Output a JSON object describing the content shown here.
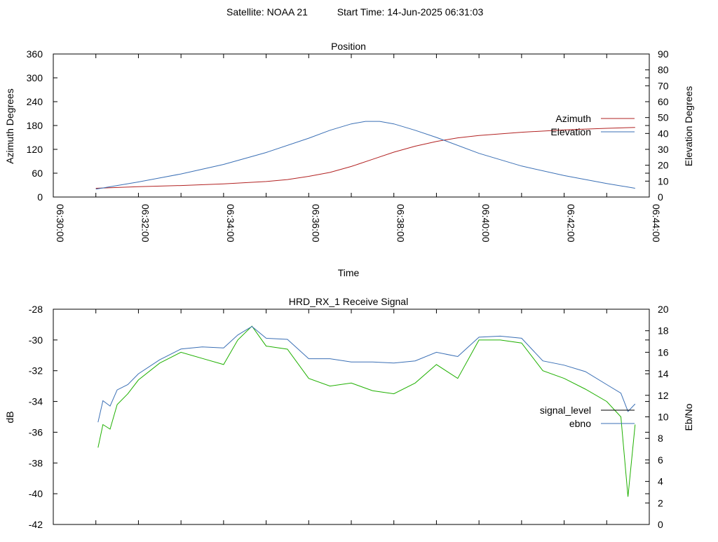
{
  "header": {
    "satellite": "Satellite: NOAA 21",
    "start_time": "Start Time: 14-Jun-2025 06:31:03"
  },
  "chart_data": [
    {
      "id": "position",
      "type": "line",
      "title": "Position",
      "xlabel": "Time",
      "ylabel_left": "Azimuth Degrees",
      "ylabel_right": "Elevation Degrees",
      "xlim": [
        "06:30:00",
        "06:44:00"
      ],
      "ylim_left": [
        0,
        360
      ],
      "ylim_right": [
        0,
        90
      ],
      "x_ticks": [
        "06:30:00",
        "06:32:00",
        "06:34:00",
        "06:36:00",
        "06:38:00",
        "06:40:00",
        "06:42:00",
        "06:44:00"
      ],
      "y_ticks_left": [
        "0",
        "60",
        "120",
        "180",
        "240",
        "300",
        "360"
      ],
      "y_ticks_right": [
        "0",
        "10",
        "20",
        "30",
        "40",
        "50",
        "60",
        "70",
        "80",
        "90"
      ],
      "legend_position": "right",
      "grid": false,
      "series": [
        {
          "name": "Azimuth",
          "axis": "left",
          "color": "#b22222",
          "x": [
            "06:31:00",
            "06:32:00",
            "06:33:00",
            "06:34:00",
            "06:35:00",
            "06:35:30",
            "06:36:00",
            "06:36:30",
            "06:37:00",
            "06:37:30",
            "06:38:00",
            "06:38:30",
            "06:39:00",
            "06:39:30",
            "06:40:00",
            "06:41:00",
            "06:42:00",
            "06:43:00",
            "06:43:40"
          ],
          "values": [
            22,
            26,
            29,
            33,
            39,
            44,
            52,
            62,
            77,
            95,
            113,
            128,
            140,
            149,
            155,
            163,
            169,
            173,
            175
          ]
        },
        {
          "name": "Elevation",
          "axis": "right",
          "color": "#3a6fb5",
          "x": [
            "06:31:00",
            "06:32:00",
            "06:33:00",
            "06:34:00",
            "06:35:00",
            "06:36:00",
            "06:36:30",
            "06:37:00",
            "06:37:20",
            "06:37:40",
            "06:38:00",
            "06:38:30",
            "06:39:00",
            "06:40:00",
            "06:41:00",
            "06:42:00",
            "06:43:00",
            "06:43:40"
          ],
          "values": [
            5,
            9.5,
            14.5,
            20.5,
            28,
            37,
            42,
            46,
            47.6,
            47.6,
            46,
            42,
            37.5,
            27.5,
            19.5,
            13.5,
            8.5,
            5.5
          ]
        }
      ]
    },
    {
      "id": "signal",
      "type": "line",
      "title": "HRD_RX_1 Receive Signal",
      "ylabel_left": "dB",
      "ylabel_right": "Eb/No",
      "xlim": [
        "06:30:00",
        "06:44:00"
      ],
      "ylim_left": [
        -42,
        -28
      ],
      "ylim_right": [
        0,
        20
      ],
      "y_ticks_left": [
        "-28",
        "-30",
        "-32",
        "-34",
        "-36",
        "-38",
        "-40",
        "-42"
      ],
      "y_ticks_right": [
        "0",
        "2",
        "4",
        "6",
        "8",
        "10",
        "12",
        "14",
        "16",
        "18",
        "20"
      ],
      "legend_position": "right",
      "grid": false,
      "series": [
        {
          "name": "signal_level",
          "axis": "left",
          "color": "#1fb000",
          "x": [
            "06:31:03",
            "06:31:10",
            "06:31:20",
            "06:31:30",
            "06:31:45",
            "06:32:00",
            "06:32:30",
            "06:33:00",
            "06:33:30",
            "06:34:00",
            "06:34:20",
            "06:34:40",
            "06:35:00",
            "06:35:30",
            "06:36:00",
            "06:36:30",
            "06:37:00",
            "06:37:30",
            "06:38:00",
            "06:38:30",
            "06:39:00",
            "06:39:30",
            "06:40:00",
            "06:40:30",
            "06:41:00",
            "06:41:30",
            "06:42:00",
            "06:42:30",
            "06:43:00",
            "06:43:20",
            "06:43:30",
            "06:43:40"
          ],
          "values": [
            -37,
            -35.5,
            -35.8,
            -34.2,
            -33.5,
            -32.6,
            -31.5,
            -30.8,
            -31.2,
            -31.6,
            -30.0,
            -29.1,
            -30.4,
            -30.6,
            -32.5,
            -33.0,
            -32.8,
            -33.3,
            -33.5,
            -32.8,
            -31.6,
            -32.5,
            -30.0,
            -30.0,
            -30.2,
            -32.0,
            -32.5,
            -33.2,
            -34.0,
            -35.0,
            -40.2,
            -35.5
          ]
        },
        {
          "name": "ebno",
          "axis": "right",
          "color": "#3a6fb5",
          "x": [
            "06:31:03",
            "06:31:10",
            "06:31:20",
            "06:31:30",
            "06:31:45",
            "06:32:00",
            "06:32:30",
            "06:33:00",
            "06:33:30",
            "06:34:00",
            "06:34:20",
            "06:34:40",
            "06:35:00",
            "06:35:30",
            "06:36:00",
            "06:36:30",
            "06:37:00",
            "06:37:30",
            "06:38:00",
            "06:38:30",
            "06:39:00",
            "06:39:30",
            "06:40:00",
            "06:40:30",
            "06:41:00",
            "06:41:30",
            "06:42:00",
            "06:42:30",
            "06:43:00",
            "06:43:20",
            "06:43:30",
            "06:43:40"
          ],
          "values": [
            9.5,
            11.5,
            11.0,
            12.5,
            13.0,
            14.0,
            15.3,
            16.3,
            16.5,
            16.4,
            17.6,
            18.4,
            17.3,
            17.2,
            15.4,
            15.4,
            15.1,
            15.1,
            15.0,
            15.2,
            16.0,
            15.6,
            17.4,
            17.5,
            17.3,
            15.2,
            14.8,
            14.2,
            13.0,
            12.2,
            10.5,
            11.2
          ]
        }
      ]
    }
  ]
}
